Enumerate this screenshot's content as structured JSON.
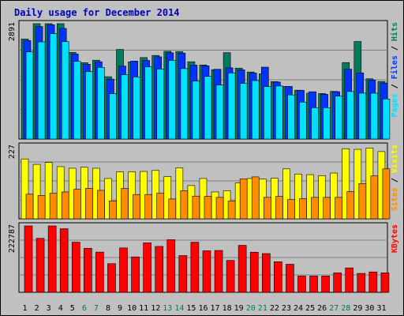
{
  "chart_data": {
    "type": "bar",
    "title": "Daily usage for December 2014",
    "categories": [
      "1",
      "2",
      "3",
      "4",
      "5",
      "6",
      "7",
      "8",
      "9",
      "10",
      "11",
      "12",
      "13",
      "14",
      "15",
      "16",
      "17",
      "18",
      "19",
      "20",
      "21",
      "22",
      "23",
      "24",
      "25",
      "26",
      "27",
      "28",
      "29",
      "30",
      "31"
    ],
    "weekend_days": [
      "6",
      "7",
      "13",
      "14",
      "20",
      "21",
      "27",
      "28"
    ],
    "panels": [
      {
        "id": "pages-files-hits",
        "ymax_label": "2891",
        "ymax": 2891,
        "legend": [
          "Pages",
          "Files",
          "Hits"
        ],
        "series": [
          {
            "name": "Hits",
            "color": "#007b5c",
            "values": [
              2507,
              2891,
              2891,
              2891,
              2173,
              1913,
              1976,
              1563,
              2245,
              1935,
              2042,
              2095,
              2199,
              2193,
              1937,
              1857,
              1739,
              2165,
              1778,
              1680,
              1635,
              1438,
              1317,
              1224,
              1150,
              1141,
              1194,
              1917,
              2445,
              1510,
              1443
            ]
          },
          {
            "name": "Files",
            "color": "#0033ff",
            "values": [
              2468,
              2819,
              2863,
              2773,
              2130,
              1875,
              1937,
              1502,
              1829,
              1954,
              1969,
              2061,
              2161,
              2153,
              1854,
              1835,
              1749,
              1785,
              1734,
              1653,
              1802,
              1428,
              1318,
              1220,
              1185,
              1120,
              1187,
              1751,
              1658,
              1478,
              1404
            ]
          },
          {
            "name": "Pages",
            "color": "#00e0ff",
            "values": [
              2184,
              2435,
              2642,
              2442,
              1946,
              1692,
              1796,
              1137,
              1614,
              1557,
              1810,
              1755,
              1970,
              1765,
              1453,
              1570,
              1354,
              1654,
              1396,
              1465,
              1314,
              1330,
              1106,
              926,
              786,
              786,
              1075,
              1191,
              1150,
              1149,
              1004
            ]
          }
        ]
      },
      {
        "id": "visits-sites",
        "ymax_label": "227",
        "ymax": 227,
        "legend": [
          "Sites",
          "Visits"
        ],
        "series": [
          {
            "name": "Visits",
            "color": "#ffff00",
            "values": [
              187,
              170,
              176,
              163,
              158,
              161,
              158,
              126,
              147,
              147,
              148,
              151,
              132,
              159,
              104,
              126,
              84,
              88,
              112,
              126,
              124,
              127,
              156,
              140,
              138,
              135,
              143,
              219,
              217,
              221,
              210
            ]
          },
          {
            "name": "Sites",
            "color": "#ff8c00",
            "values": [
              77,
              73,
              80,
              84,
              92,
              95,
              89,
              56,
              95,
              76,
              76,
              80,
              62,
              88,
              71,
              70,
              67,
              56,
              125,
              131,
              67,
              70,
              60,
              63,
              67,
              67,
              67,
              85,
              110,
              134,
              156
            ]
          }
        ]
      },
      {
        "id": "kbytes",
        "ymax_label": "222787",
        "ymax": 222787,
        "legend": [
          "KBytes"
        ],
        "series": [
          {
            "name": "KBytes",
            "color": "#ff0000",
            "values": [
              222787,
              181094,
              222787,
              213529,
              168141,
              147813,
              134931,
              96133,
              149094,
              118800,
              165985,
              154062,
              176500,
              123375,
              168141,
              139391,
              140542,
              107000,
              157687,
              134600,
              130000,
              102600,
              94250,
              54625,
              54625,
              54625,
              65156,
              81906,
              63453,
              68429,
              65500
            ]
          }
        ]
      }
    ],
    "legend_colors": {
      "Pages": "#00e0ff",
      "Files": "#0033ff",
      "Hits": "#007b5c",
      "Sites": "#ff8c00",
      "Visits": "#ffff00",
      "KBytes": "#ff0000"
    }
  },
  "colors": {
    "background": "#c0c0c0",
    "title": "#0000c0",
    "weekday_label": "#000000",
    "weekend_label": "#007b5c",
    "separator": "#000000"
  }
}
